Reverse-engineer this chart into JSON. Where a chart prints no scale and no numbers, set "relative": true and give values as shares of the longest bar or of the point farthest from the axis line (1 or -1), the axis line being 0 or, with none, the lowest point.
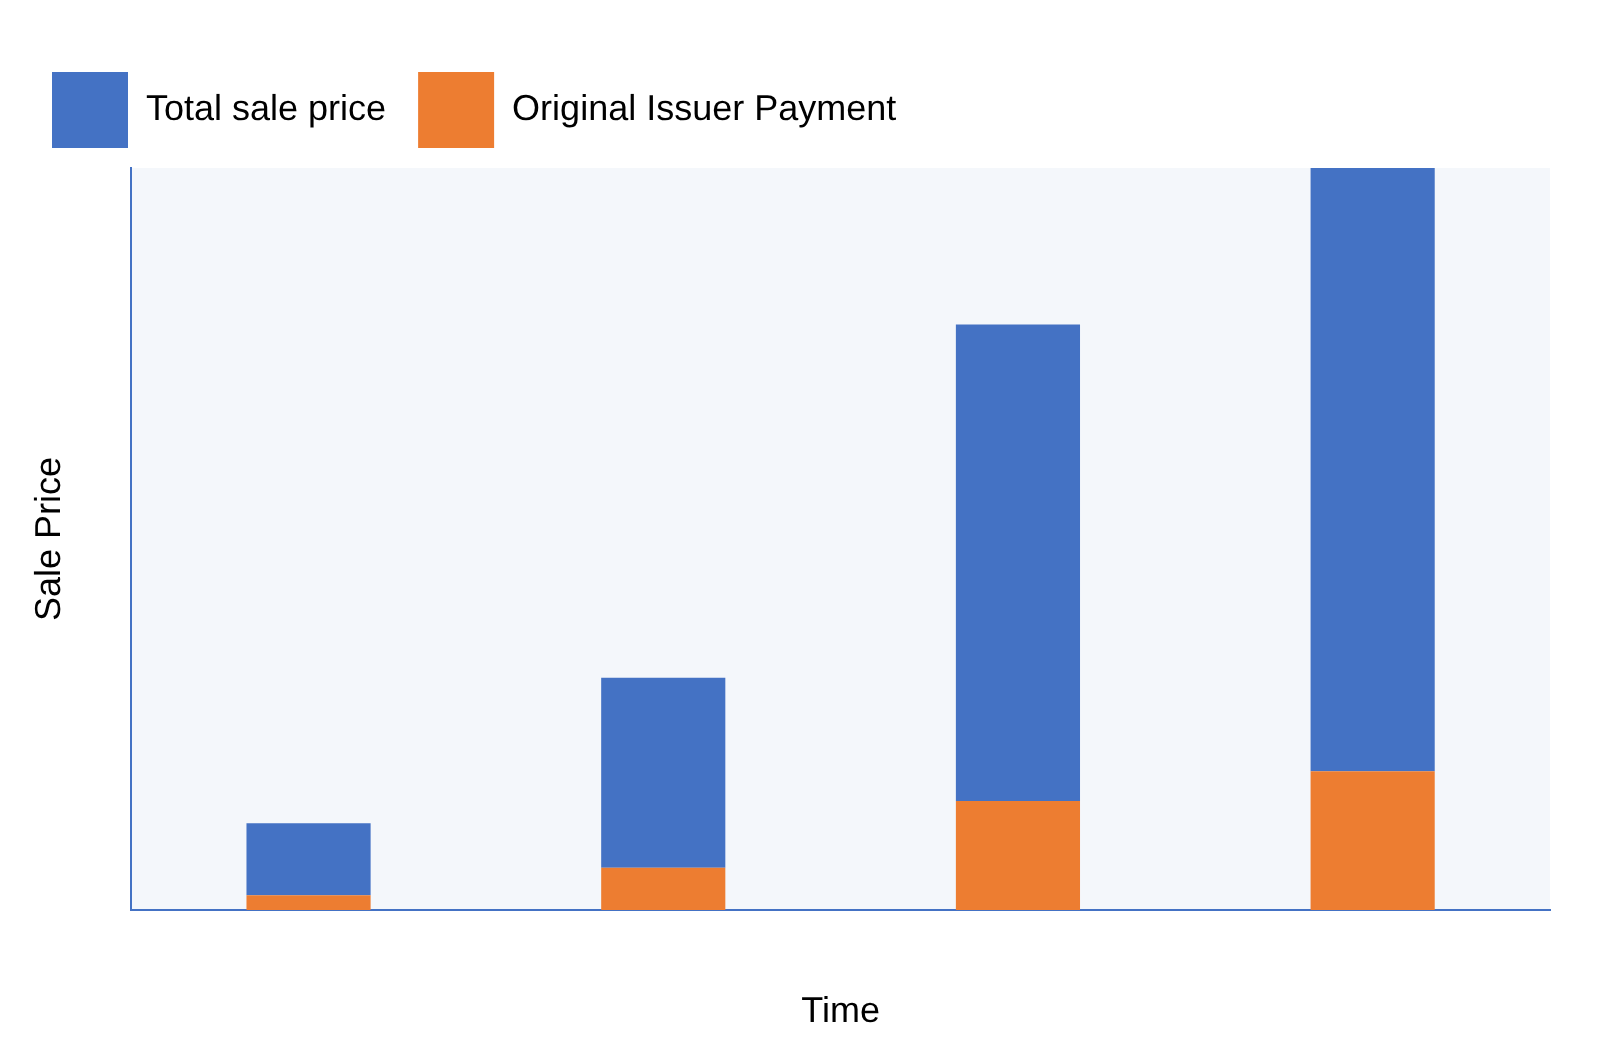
{
  "chart_data": {
    "type": "bar",
    "xlabel": "Time",
    "ylabel": "Sale Price",
    "categories": [
      null,
      null,
      null,
      null
    ],
    "stacked": true,
    "relative": true,
    "legend": "top left",
    "grid": false,
    "series": [
      {
        "name": "Original Issuer Payment",
        "color": "#ed7d31",
        "values": [
          0.02,
          0.057,
          0.147,
          0.187
        ]
      },
      {
        "name": "Total sale price",
        "color": "#4472c4",
        "values": [
          0.097,
          0.256,
          0.642,
          0.813
        ]
      }
    ]
  }
}
